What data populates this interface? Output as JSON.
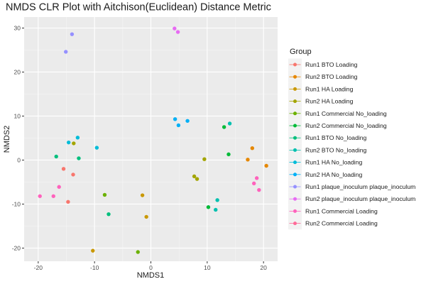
{
  "chart_data": {
    "type": "scatter",
    "title": "NMDS CLR Plot with Aitchison(Euclidean) Distance Metric",
    "xlabel": "NMDS1",
    "ylabel": "NMDS2",
    "xlim": [
      -22.5,
      22.5
    ],
    "ylim": [
      -23,
      32.5
    ],
    "xticks": [
      -20,
      -10,
      0,
      10,
      20
    ],
    "yticks": [
      -20,
      -10,
      0,
      10,
      20,
      30
    ],
    "grid": true,
    "legend_title": "Group",
    "legend_position": "right",
    "series": [
      {
        "name": "Run1 BTO Loading",
        "color": "#F8766D",
        "points": [
          [
            -15.5,
            -2.0
          ],
          [
            -13.8,
            -3.3
          ],
          [
            -14.7,
            -9.5
          ]
        ]
      },
      {
        "name": "Run2 BTO Loading",
        "color": "#E58700",
        "points": [
          [
            17.2,
            0.1
          ],
          [
            18.0,
            2.7
          ],
          [
            20.5,
            -1.3
          ]
        ]
      },
      {
        "name": "Run1 HA Loading",
        "color": "#C99800",
        "points": [
          [
            -1.5,
            -8.0
          ],
          [
            -0.8,
            -12.9
          ],
          [
            -10.3,
            -20.6
          ]
        ]
      },
      {
        "name": "Run2 HA Loading",
        "color": "#A3A500",
        "points": [
          [
            -13.7,
            3.8
          ],
          [
            7.7,
            -3.7
          ],
          [
            8.2,
            -4.3
          ],
          [
            9.5,
            0.2
          ]
        ]
      },
      {
        "name": "Run1 Commercial No_loading",
        "color": "#6BB100",
        "points": [
          [
            -8.2,
            -7.9
          ],
          [
            -2.3,
            -20.9
          ]
        ]
      },
      {
        "name": "Run2 Commercial No_loading",
        "color": "#00BA38",
        "points": [
          [
            13.0,
            7.5
          ],
          [
            13.8,
            1.3
          ],
          [
            10.2,
            -10.7
          ]
        ]
      },
      {
        "name": "Run1 BTO No_loading",
        "color": "#00BF7D",
        "points": [
          [
            -16.8,
            0.8
          ],
          [
            -12.8,
            0.4
          ],
          [
            -7.5,
            -12.3
          ]
        ]
      },
      {
        "name": "Run2 BTO No_loading",
        "color": "#00C0AF",
        "points": [
          [
            14.0,
            8.3
          ],
          [
            11.5,
            -11.3
          ],
          [
            11.8,
            -9.1
          ]
        ]
      },
      {
        "name": "Run1 HA No_loading",
        "color": "#00BCD8",
        "points": [
          [
            -14.6,
            4.0
          ],
          [
            -13.0,
            5.1
          ],
          [
            -9.6,
            2.8
          ]
        ]
      },
      {
        "name": "Run2 HA No_loading",
        "color": "#00B0F6",
        "points": [
          [
            4.3,
            9.3
          ],
          [
            4.9,
            7.9
          ],
          [
            6.5,
            8.9
          ]
        ]
      },
      {
        "name": "Run1 plaque_inoculum plaque_inoculum",
        "color": "#9590FF",
        "points": [
          [
            -14.0,
            28.6
          ],
          [
            -15.1,
            24.6
          ]
        ]
      },
      {
        "name": "Run2 plaque_inoculum plaque_inoculum",
        "color": "#E76BF3",
        "points": [
          [
            4.2,
            29.9
          ],
          [
            4.8,
            29.1
          ]
        ]
      },
      {
        "name": "Run1 Commercial Loading",
        "color": "#FF62BC",
        "points": [
          [
            -19.7,
            -8.2
          ],
          [
            -17.3,
            -8.2
          ],
          [
            -16.3,
            -6.1
          ],
          [
            18.3,
            -5.3
          ],
          [
            18.8,
            -4.1
          ],
          [
            19.2,
            -6.8
          ]
        ]
      },
      {
        "name": "Run2 Commercial Loading",
        "color": "#FF6A98",
        "points": []
      }
    ]
  }
}
